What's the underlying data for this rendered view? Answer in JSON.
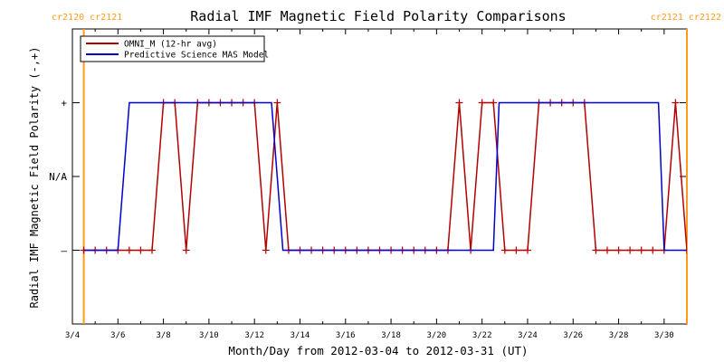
{
  "chart_data": {
    "type": "line",
    "title": "Radial IMF Magnetic Field Polarity Comparisons",
    "xlabel": "Month/Day from 2012-03-04 to 2012-03-31 (UT)",
    "ylabel": "Radial IMF Magnetic Field Polarity (-,+)",
    "xlim": [
      "2012-03-04T00:00",
      "2012-03-31T00:00"
    ],
    "ylim": [
      -2,
      2
    ],
    "x_ticks": [
      "2012-03-04",
      "2012-03-06",
      "2012-03-08",
      "2012-03-10",
      "2012-03-12",
      "2012-03-14",
      "2012-03-16",
      "2012-03-18",
      "2012-03-20",
      "2012-03-22",
      "2012-03-24",
      "2012-03-26",
      "2012-03-28",
      "2012-03-30"
    ],
    "x_tick_labels": [
      "3/4",
      "3/6",
      "3/8",
      "3/10",
      "3/12",
      "3/14",
      "3/16",
      "3/18",
      "3/20",
      "3/22",
      "3/24",
      "3/26",
      "3/28",
      "3/30"
    ],
    "y_ticks": [
      -1,
      0,
      1
    ],
    "y_tick_labels": [
      "–",
      "N/A",
      "+"
    ],
    "legend_position": "top-left",
    "carrington_markers": [
      {
        "x": "2012-03-04T12:00",
        "color": "#ff9a1f",
        "labels": [
          "cr2120",
          "cr2121"
        ],
        "label_color": "#ff9a1f"
      },
      {
        "x": "2012-03-31T00:00",
        "color": "#ff9a1f",
        "labels": [
          "cr2121",
          "cr2122"
        ],
        "label_color": "#ff9a1f"
      }
    ],
    "series": [
      {
        "name": "OMNI_M (12-hr avg)",
        "color": "#b30000",
        "markers": true,
        "points": [
          [
            "2012-03-04T12:00",
            -1
          ],
          [
            "2012-03-05T00:00",
            -1
          ],
          [
            "2012-03-05T12:00",
            -1
          ],
          [
            "2012-03-06T00:00",
            -1
          ],
          [
            "2012-03-06T12:00",
            -1
          ],
          [
            "2012-03-07T00:00",
            -1
          ],
          [
            "2012-03-07T12:00",
            -1
          ],
          [
            "2012-03-08T00:00",
            1
          ],
          [
            "2012-03-08T12:00",
            1
          ],
          [
            "2012-03-09T00:00",
            -1
          ],
          [
            "2012-03-09T12:00",
            1
          ],
          [
            "2012-03-10T00:00",
            1
          ],
          [
            "2012-03-10T12:00",
            1
          ],
          [
            "2012-03-11T00:00",
            1
          ],
          [
            "2012-03-11T12:00",
            1
          ],
          [
            "2012-03-12T00:00",
            1
          ],
          [
            "2012-03-12T12:00",
            -1
          ],
          [
            "2012-03-13T00:00",
            1
          ],
          [
            "2012-03-13T12:00",
            -1
          ],
          [
            "2012-03-14T00:00",
            -1
          ],
          [
            "2012-03-14T12:00",
            -1
          ],
          [
            "2012-03-15T00:00",
            -1
          ],
          [
            "2012-03-15T12:00",
            -1
          ],
          [
            "2012-03-16T00:00",
            -1
          ],
          [
            "2012-03-16T12:00",
            -1
          ],
          [
            "2012-03-17T00:00",
            -1
          ],
          [
            "2012-03-17T12:00",
            -1
          ],
          [
            "2012-03-18T00:00",
            -1
          ],
          [
            "2012-03-18T12:00",
            -1
          ],
          [
            "2012-03-19T00:00",
            -1
          ],
          [
            "2012-03-19T12:00",
            -1
          ],
          [
            "2012-03-20T00:00",
            -1
          ],
          [
            "2012-03-20T12:00",
            -1
          ],
          [
            "2012-03-21T00:00",
            1
          ],
          [
            "2012-03-21T12:00",
            -1
          ],
          [
            "2012-03-22T00:00",
            1
          ],
          [
            "2012-03-22T12:00",
            1
          ],
          [
            "2012-03-23T00:00",
            -1
          ],
          [
            "2012-03-23T12:00",
            -1
          ],
          [
            "2012-03-24T00:00",
            -1
          ],
          [
            "2012-03-24T12:00",
            1
          ],
          [
            "2012-03-25T00:00",
            1
          ],
          [
            "2012-03-25T12:00",
            1
          ],
          [
            "2012-03-26T00:00",
            1
          ],
          [
            "2012-03-26T12:00",
            1
          ],
          [
            "2012-03-27T00:00",
            -1
          ],
          [
            "2012-03-27T12:00",
            -1
          ],
          [
            "2012-03-28T00:00",
            -1
          ],
          [
            "2012-03-28T12:00",
            -1
          ],
          [
            "2012-03-29T00:00",
            -1
          ],
          [
            "2012-03-29T12:00",
            -1
          ],
          [
            "2012-03-30T00:00",
            -1
          ],
          [
            "2012-03-30T12:00",
            1
          ],
          [
            "2012-03-31T00:00",
            -1
          ]
        ]
      },
      {
        "name": "Predictive Science MAS Model",
        "color": "#0000cc",
        "markers": false,
        "points": [
          [
            "2012-03-04T12:00",
            -1
          ],
          [
            "2012-03-06T00:00",
            -1
          ],
          [
            "2012-03-06T12:00",
            1
          ],
          [
            "2012-03-12T18:00",
            1
          ],
          [
            "2012-03-13T06:00",
            -1
          ],
          [
            "2012-03-22T12:00",
            -1
          ],
          [
            "2012-03-22T18:00",
            1
          ],
          [
            "2012-03-29T18:00",
            1
          ],
          [
            "2012-03-30T00:00",
            -1
          ],
          [
            "2012-04-01T12:00",
            -1
          ]
        ]
      }
    ]
  }
}
